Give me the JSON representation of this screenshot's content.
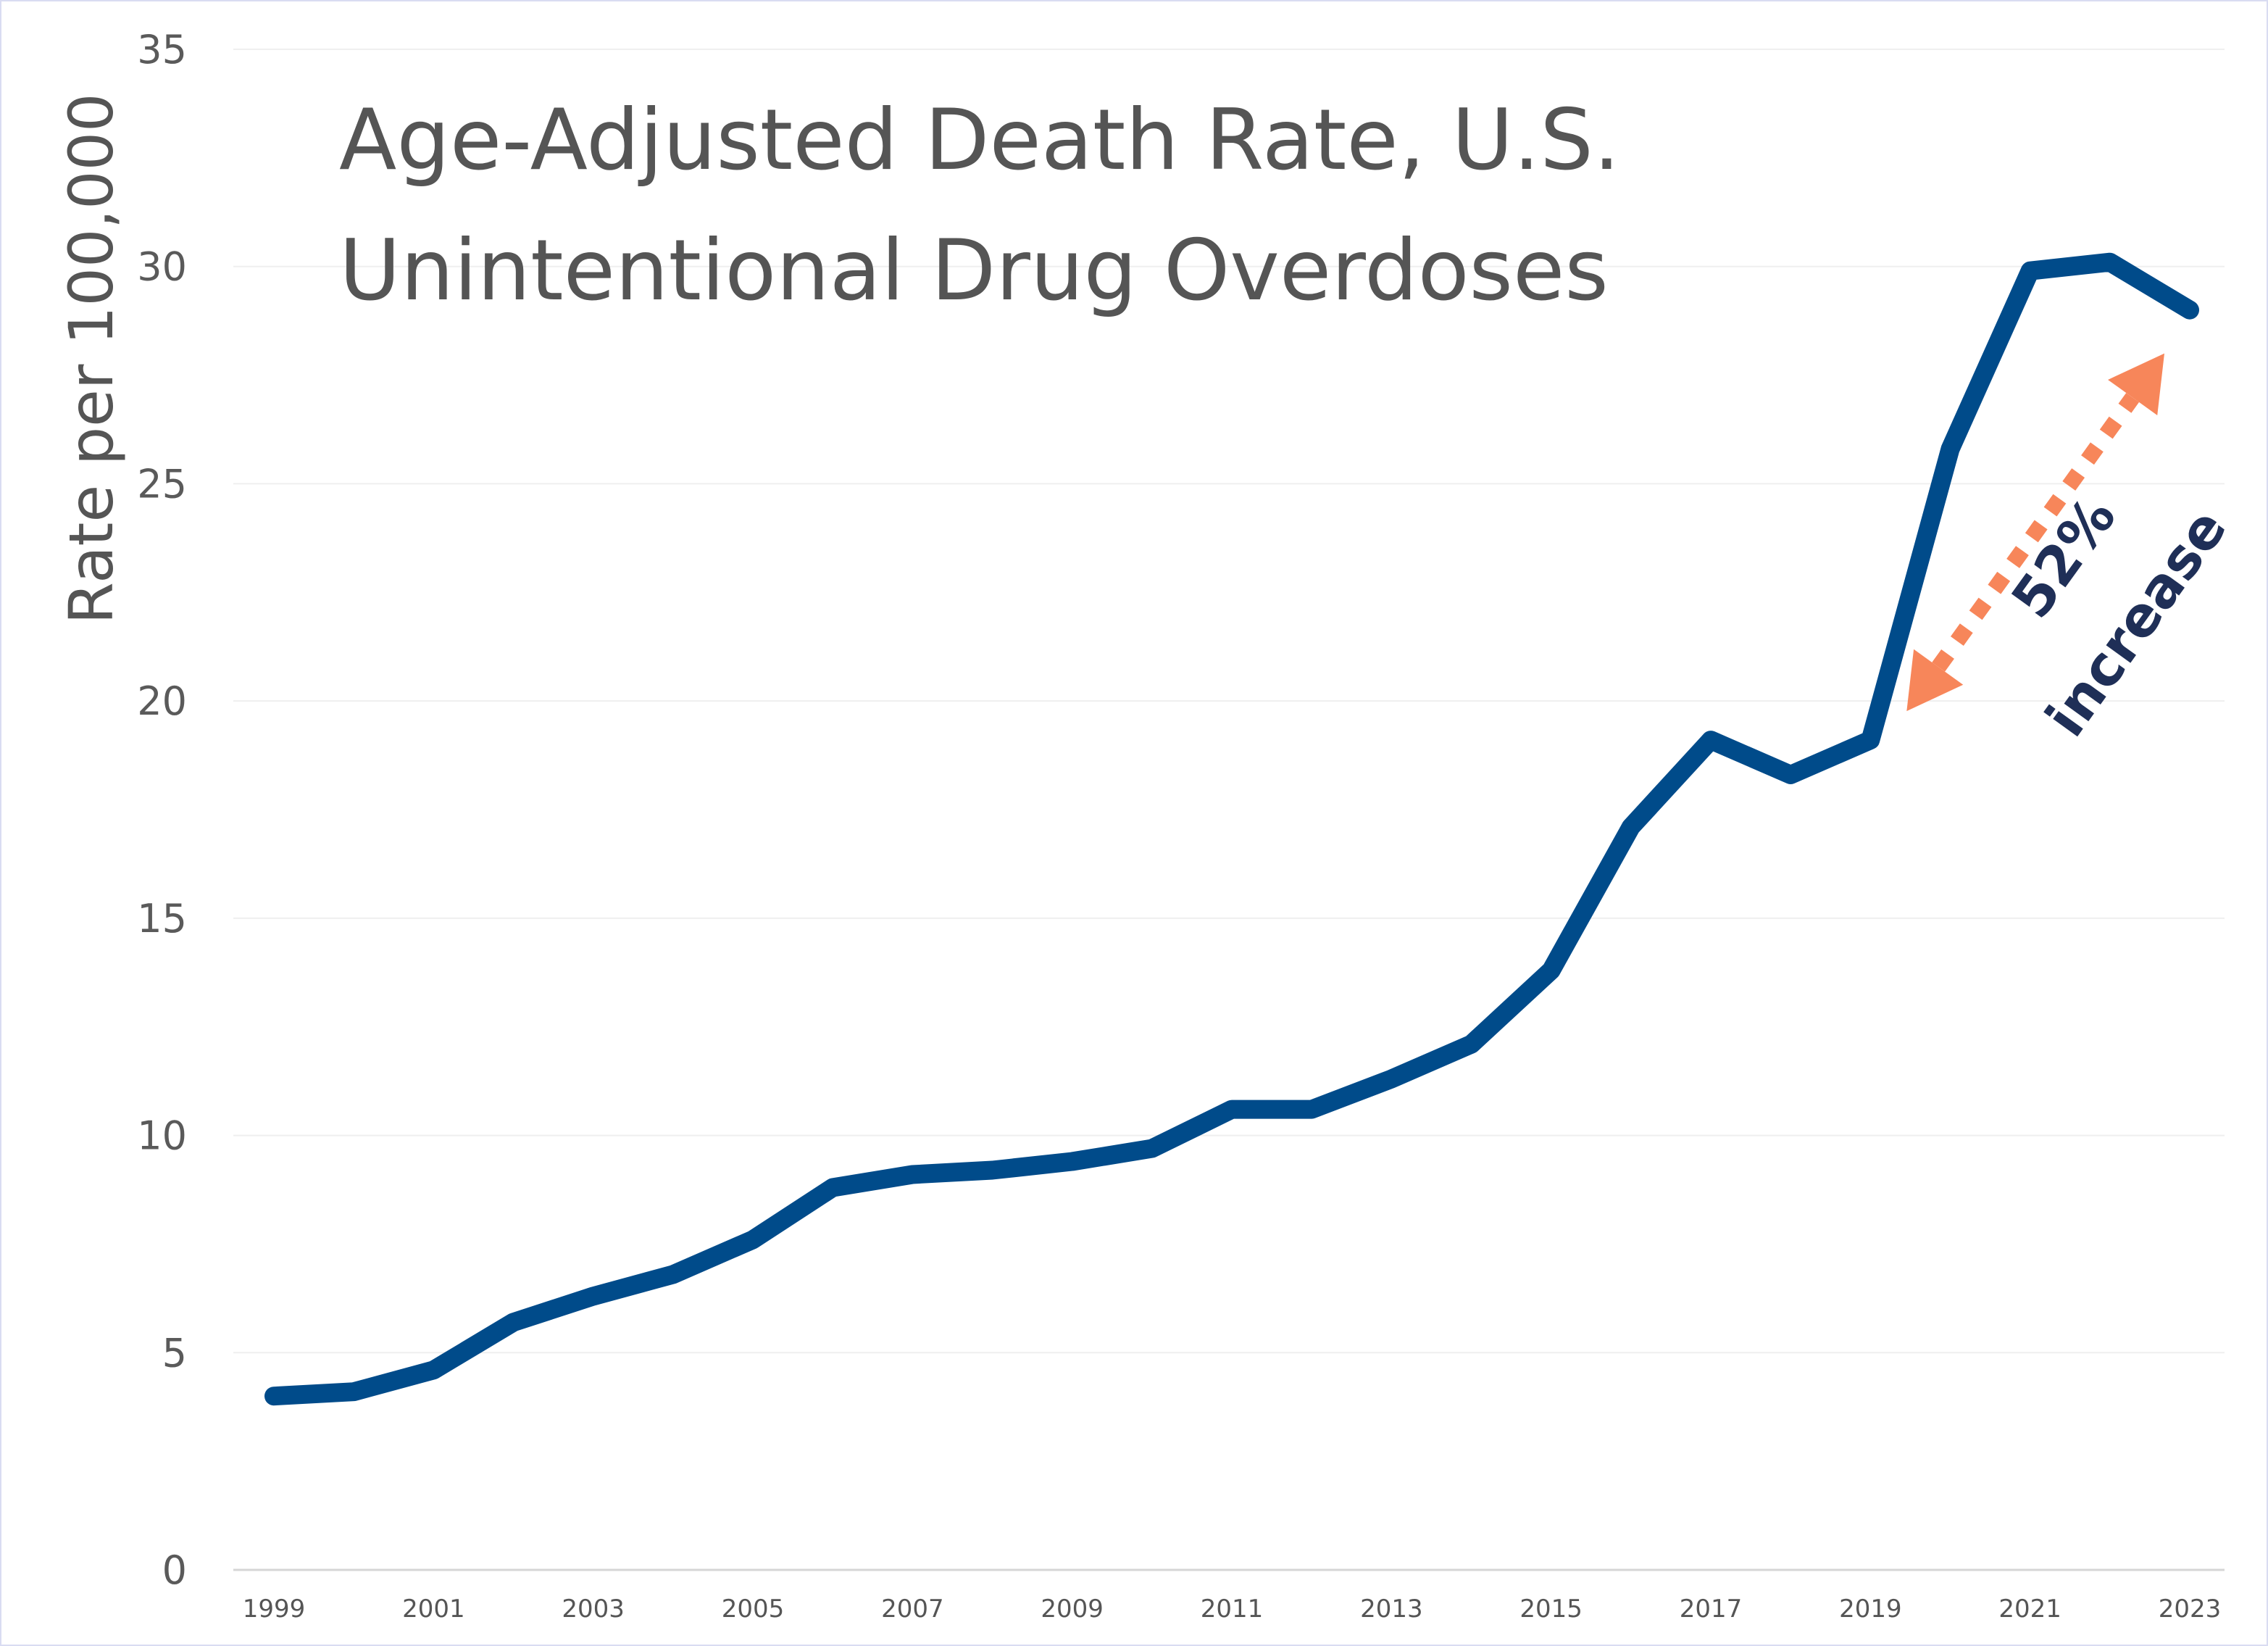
{
  "chart_data": {
    "type": "line",
    "title": [
      "Age-Adjusted Death Rate, U.S.",
      "Unintentional Drug Overdoses"
    ],
    "ylabel": "Rate per 100,000",
    "xlabel": "",
    "ylim": [
      0,
      35
    ],
    "yticks": [
      "0",
      "5",
      "10",
      "15",
      "20",
      "25",
      "30",
      "35"
    ],
    "xtick_labels": [
      "1999",
      "2001",
      "2003",
      "2005",
      "2007",
      "2009",
      "2011",
      "2013",
      "2015",
      "2017",
      "2019",
      "2021",
      "2023"
    ],
    "grid": true,
    "legend": "none",
    "series": [
      {
        "x": [
          1999,
          2000,
          2001,
          2002,
          2003,
          2004,
          2005,
          2006,
          2007,
          2008,
          2009,
          2010,
          2011,
          2012,
          2013,
          2014,
          2015,
          2016,
          2017,
          2018,
          2019,
          2020,
          2021,
          2022,
          2023
        ],
        "values": [
          4.0,
          4.1,
          4.6,
          5.7,
          6.3,
          6.8,
          7.6,
          8.8,
          9.1,
          9.2,
          9.4,
          9.7,
          10.6,
          10.6,
          11.3,
          12.1,
          13.8,
          17.1,
          19.1,
          18.3,
          19.1,
          25.8,
          29.9,
          30.1,
          29.0
        ],
        "color": "#004b8a"
      }
    ],
    "annotations": [
      {
        "text_line1": "52%",
        "text_line2": "increase",
        "from_year": 2019,
        "to_year": 2023,
        "arrow_color": "#f7865a",
        "text_color": "#1f2f57"
      }
    ]
  }
}
